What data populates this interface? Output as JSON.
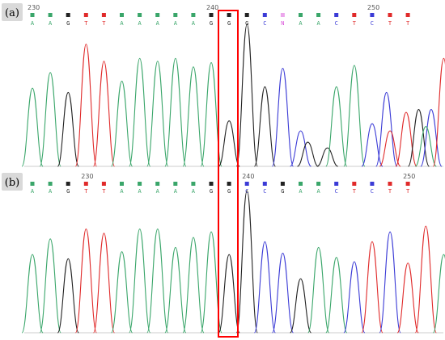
{
  "colors": {
    "A": "#3aa66a",
    "C": "#3b3bd6",
    "G": "#222222",
    "T": "#e02a2a",
    "N": "#d94fd9",
    "highlight": "#ff0000",
    "tag_bg": "#d9d9d9"
  },
  "chart_data": [
    {
      "type": "line",
      "panel": "(a)",
      "description": "Sanger sequencing chromatogram",
      "positions": [
        {
          "label": "230",
          "base_index": 0
        },
        {
          "label": "240",
          "base_index": 10
        },
        {
          "label": "250",
          "base_index": 19
        }
      ],
      "bases": [
        "A",
        "A",
        "G",
        "T",
        "T",
        "A",
        "A",
        "A",
        "A",
        "A",
        "G",
        "G",
        "G",
        "C",
        "N",
        "A",
        "A",
        "C",
        "T",
        "C",
        "T",
        "T"
      ],
      "quality": [
        "A",
        "A",
        "G",
        "T",
        "T",
        "A",
        "A",
        "A",
        "A",
        "A",
        "A",
        "G",
        "G",
        "C",
        "N",
        "A",
        "A",
        "C",
        "T",
        "C",
        "T",
        "T"
      ],
      "peaks": [
        {
          "base": "A",
          "x": 1,
          "height": 0.55
        },
        {
          "base": "A",
          "x": 2,
          "height": 0.66
        },
        {
          "base": "G",
          "x": 3,
          "height": 0.52
        },
        {
          "base": "T",
          "x": 4,
          "height": 0.86
        },
        {
          "base": "T",
          "x": 5,
          "height": 0.74
        },
        {
          "base": "A",
          "x": 6,
          "height": 0.6
        },
        {
          "base": "A",
          "x": 7,
          "height": 0.76
        },
        {
          "base": "A",
          "x": 8,
          "height": 0.74
        },
        {
          "base": "A",
          "x": 9,
          "height": 0.76
        },
        {
          "base": "A",
          "x": 10,
          "height": 0.7
        },
        {
          "base": "A",
          "x": 11,
          "height": 0.73
        },
        {
          "base": "G",
          "x": 12,
          "height": 0.32
        },
        {
          "base": "G",
          "x": 13,
          "height": 1.0
        },
        {
          "base": "G",
          "x": 14,
          "height": 0.56
        },
        {
          "base": "C",
          "x": 15,
          "height": 0.69
        },
        {
          "base": "C",
          "x": 16,
          "height": 0.25
        },
        {
          "base": "G",
          "x": 16.4,
          "height": 0.17
        },
        {
          "base": "G",
          "x": 17.5,
          "height": 0.13
        },
        {
          "base": "A",
          "x": 18,
          "height": 0.56
        },
        {
          "base": "A",
          "x": 19,
          "height": 0.71
        },
        {
          "base": "C",
          "x": 20,
          "height": 0.3
        },
        {
          "base": "C",
          "x": 20.8,
          "height": 0.52
        },
        {
          "base": "T",
          "x": 21,
          "height": 0.25
        },
        {
          "base": "T",
          "x": 21.9,
          "height": 0.38
        },
        {
          "base": "G",
          "x": 22.6,
          "height": 0.4
        },
        {
          "base": "C",
          "x": 23.3,
          "height": 0.4
        },
        {
          "base": "A",
          "x": 23.0,
          "height": 0.28
        },
        {
          "base": "T",
          "x": 24.0,
          "height": 0.76
        }
      ]
    },
    {
      "type": "line",
      "panel": "(b)",
      "description": "Sanger sequencing chromatogram",
      "positions": [
        {
          "label": "230",
          "base_index": 3
        },
        {
          "label": "240",
          "base_index": 12
        },
        {
          "label": "250",
          "base_index": 21
        }
      ],
      "bases": [
        "A",
        "A",
        "G",
        "T",
        "T",
        "A",
        "A",
        "A",
        "A",
        "A",
        "G",
        "G",
        "C",
        "C",
        "G",
        "A",
        "A",
        "C",
        "T",
        "C",
        "T",
        "T"
      ],
      "peaks": [
        {
          "base": "A",
          "x": 1,
          "height": 0.55
        },
        {
          "base": "A",
          "x": 2,
          "height": 0.66
        },
        {
          "base": "G",
          "x": 3,
          "height": 0.52
        },
        {
          "base": "T",
          "x": 4,
          "height": 0.73
        },
        {
          "base": "T",
          "x": 5,
          "height": 0.7
        },
        {
          "base": "A",
          "x": 6,
          "height": 0.57
        },
        {
          "base": "A",
          "x": 7,
          "height": 0.73
        },
        {
          "base": "A",
          "x": 8,
          "height": 0.73
        },
        {
          "base": "A",
          "x": 9,
          "height": 0.6
        },
        {
          "base": "A",
          "x": 10,
          "height": 0.67
        },
        {
          "base": "A",
          "x": 11,
          "height": 0.71
        },
        {
          "base": "G",
          "x": 12,
          "height": 0.55
        },
        {
          "base": "G",
          "x": 13,
          "height": 1.0
        },
        {
          "base": "C",
          "x": 14,
          "height": 0.64
        },
        {
          "base": "C",
          "x": 15,
          "height": 0.56
        },
        {
          "base": "G",
          "x": 16,
          "height": 0.38
        },
        {
          "base": "A",
          "x": 17,
          "height": 0.6
        },
        {
          "base": "A",
          "x": 18,
          "height": 0.53
        },
        {
          "base": "C",
          "x": 19,
          "height": 0.5
        },
        {
          "base": "T",
          "x": 20,
          "height": 0.64
        },
        {
          "base": "C",
          "x": 21,
          "height": 0.71
        },
        {
          "base": "T",
          "x": 22,
          "height": 0.49
        },
        {
          "base": "T",
          "x": 23,
          "height": 0.75
        },
        {
          "base": "A",
          "x": 24,
          "height": 0.55
        }
      ]
    }
  ]
}
